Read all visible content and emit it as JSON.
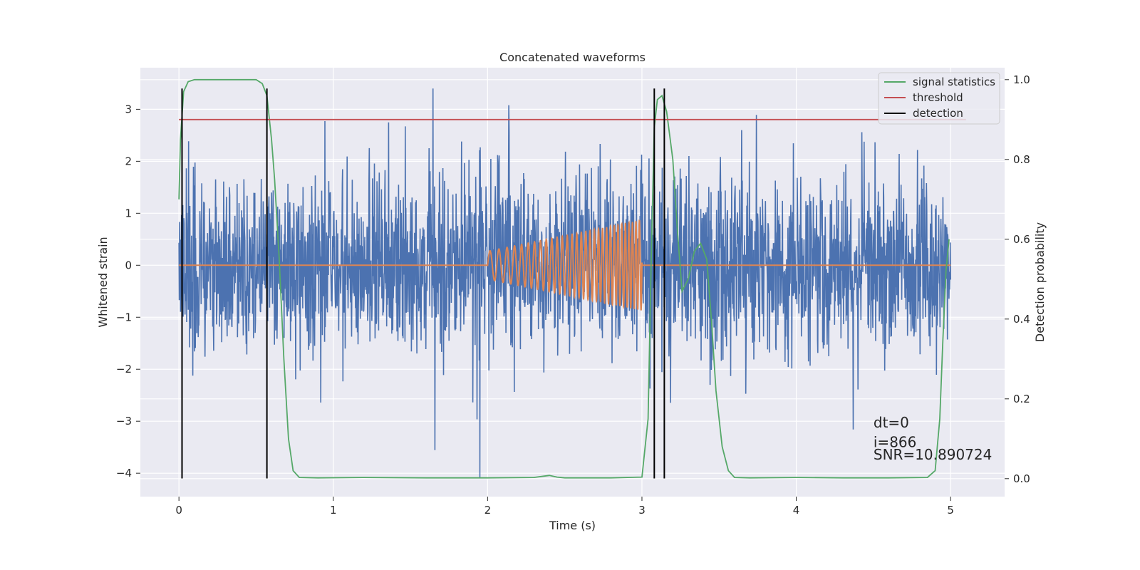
{
  "chart_data": {
    "type": "line",
    "title": "Concatenated waveforms",
    "xlabel": "Time (s)",
    "ylabel": "Whitened strain",
    "ylabel_right": "Detection probability",
    "xlim": [
      -0.25,
      5.35
    ],
    "ylim": [
      -4.45,
      3.8
    ],
    "ylim_right": [
      -0.045,
      1.03
    ],
    "xticks": [
      0,
      1,
      2,
      3,
      4,
      5
    ],
    "yticks": [
      -4,
      -3,
      -2,
      -1,
      0,
      1,
      2,
      3
    ],
    "yticks_right": [
      0.0,
      0.2,
      0.4,
      0.6,
      0.8,
      1.0
    ],
    "xtick_labels": [
      "0",
      "1",
      "2",
      "3",
      "4",
      "5"
    ],
    "ytick_labels": [
      "−4",
      "−3",
      "−2",
      "−1",
      "0",
      "1",
      "2",
      "3"
    ],
    "ytick_labels_right": [
      "0.0",
      "0.2",
      "0.4",
      "0.6",
      "0.8",
      "1.0"
    ],
    "grid": true,
    "legend_position": "top-right",
    "series": [
      {
        "id": "whitened_strain",
        "color": "#4c72b0",
        "x_range": [
          0,
          5
        ],
        "description_values": {
          "typical_amplitude": 1.4,
          "max": 3.4,
          "min": -4.1
        }
      },
      {
        "id": "injected_waveform",
        "color": "#dd8452",
        "x": [
          0,
          2,
          2.0,
          3.0,
          3.0,
          5
        ],
        "envelope": {
          "start_time": 2.0,
          "end_time": 3.0,
          "start_amplitude": 0.27,
          "end_amplitude": 0.87,
          "start_freq_hz": 16,
          "end_freq_hz": 46
        }
      },
      {
        "name": "signal statistics",
        "color": "#55a868",
        "x": [
          0.0,
          0.01,
          0.03,
          0.06,
          0.1,
          0.2,
          0.35,
          0.5,
          0.54,
          0.57,
          0.6,
          0.62,
          0.65,
          0.68,
          0.71,
          0.74,
          0.78,
          0.9,
          1.2,
          1.6,
          2.0,
          2.3,
          2.4,
          2.45,
          2.5,
          2.8,
          3.0,
          3.04,
          3.06,
          3.08,
          3.1,
          3.13,
          3.16,
          3.2,
          3.23,
          3.26,
          3.3,
          3.34,
          3.38,
          3.42,
          3.45,
          3.48,
          3.52,
          3.56,
          3.6,
          3.7,
          4.0,
          4.3,
          4.6,
          4.85,
          4.9,
          4.93,
          4.95,
          4.97,
          4.99
        ],
        "y": [
          0.7,
          0.85,
          0.97,
          0.995,
          1.0,
          1.0,
          1.0,
          1.0,
          0.99,
          0.96,
          0.85,
          0.75,
          0.55,
          0.3,
          0.1,
          0.02,
          0.003,
          0.002,
          0.003,
          0.002,
          0.002,
          0.003,
          0.008,
          0.004,
          0.002,
          0.002,
          0.004,
          0.15,
          0.55,
          0.88,
          0.95,
          0.96,
          0.92,
          0.8,
          0.62,
          0.47,
          0.5,
          0.57,
          0.59,
          0.55,
          0.4,
          0.22,
          0.08,
          0.02,
          0.003,
          0.002,
          0.003,
          0.002,
          0.002,
          0.003,
          0.02,
          0.15,
          0.35,
          0.52,
          0.6
        ]
      },
      {
        "name": "threshold",
        "color": "#c44e52",
        "x": [
          0.0,
          5.1
        ],
        "y": [
          0.9,
          0.9
        ]
      },
      {
        "name": "detection",
        "color": "#000000",
        "x": [
          0.02,
          0.57,
          3.08,
          3.145
        ],
        "y_range": [
          -4.1,
          3.4
        ]
      }
    ],
    "annotations": [
      "dt=0",
      "i=866",
      "SNR=10.890724"
    ],
    "style": {
      "axes_background": "#eaeaf2",
      "grid_color": "#ffffff"
    }
  }
}
